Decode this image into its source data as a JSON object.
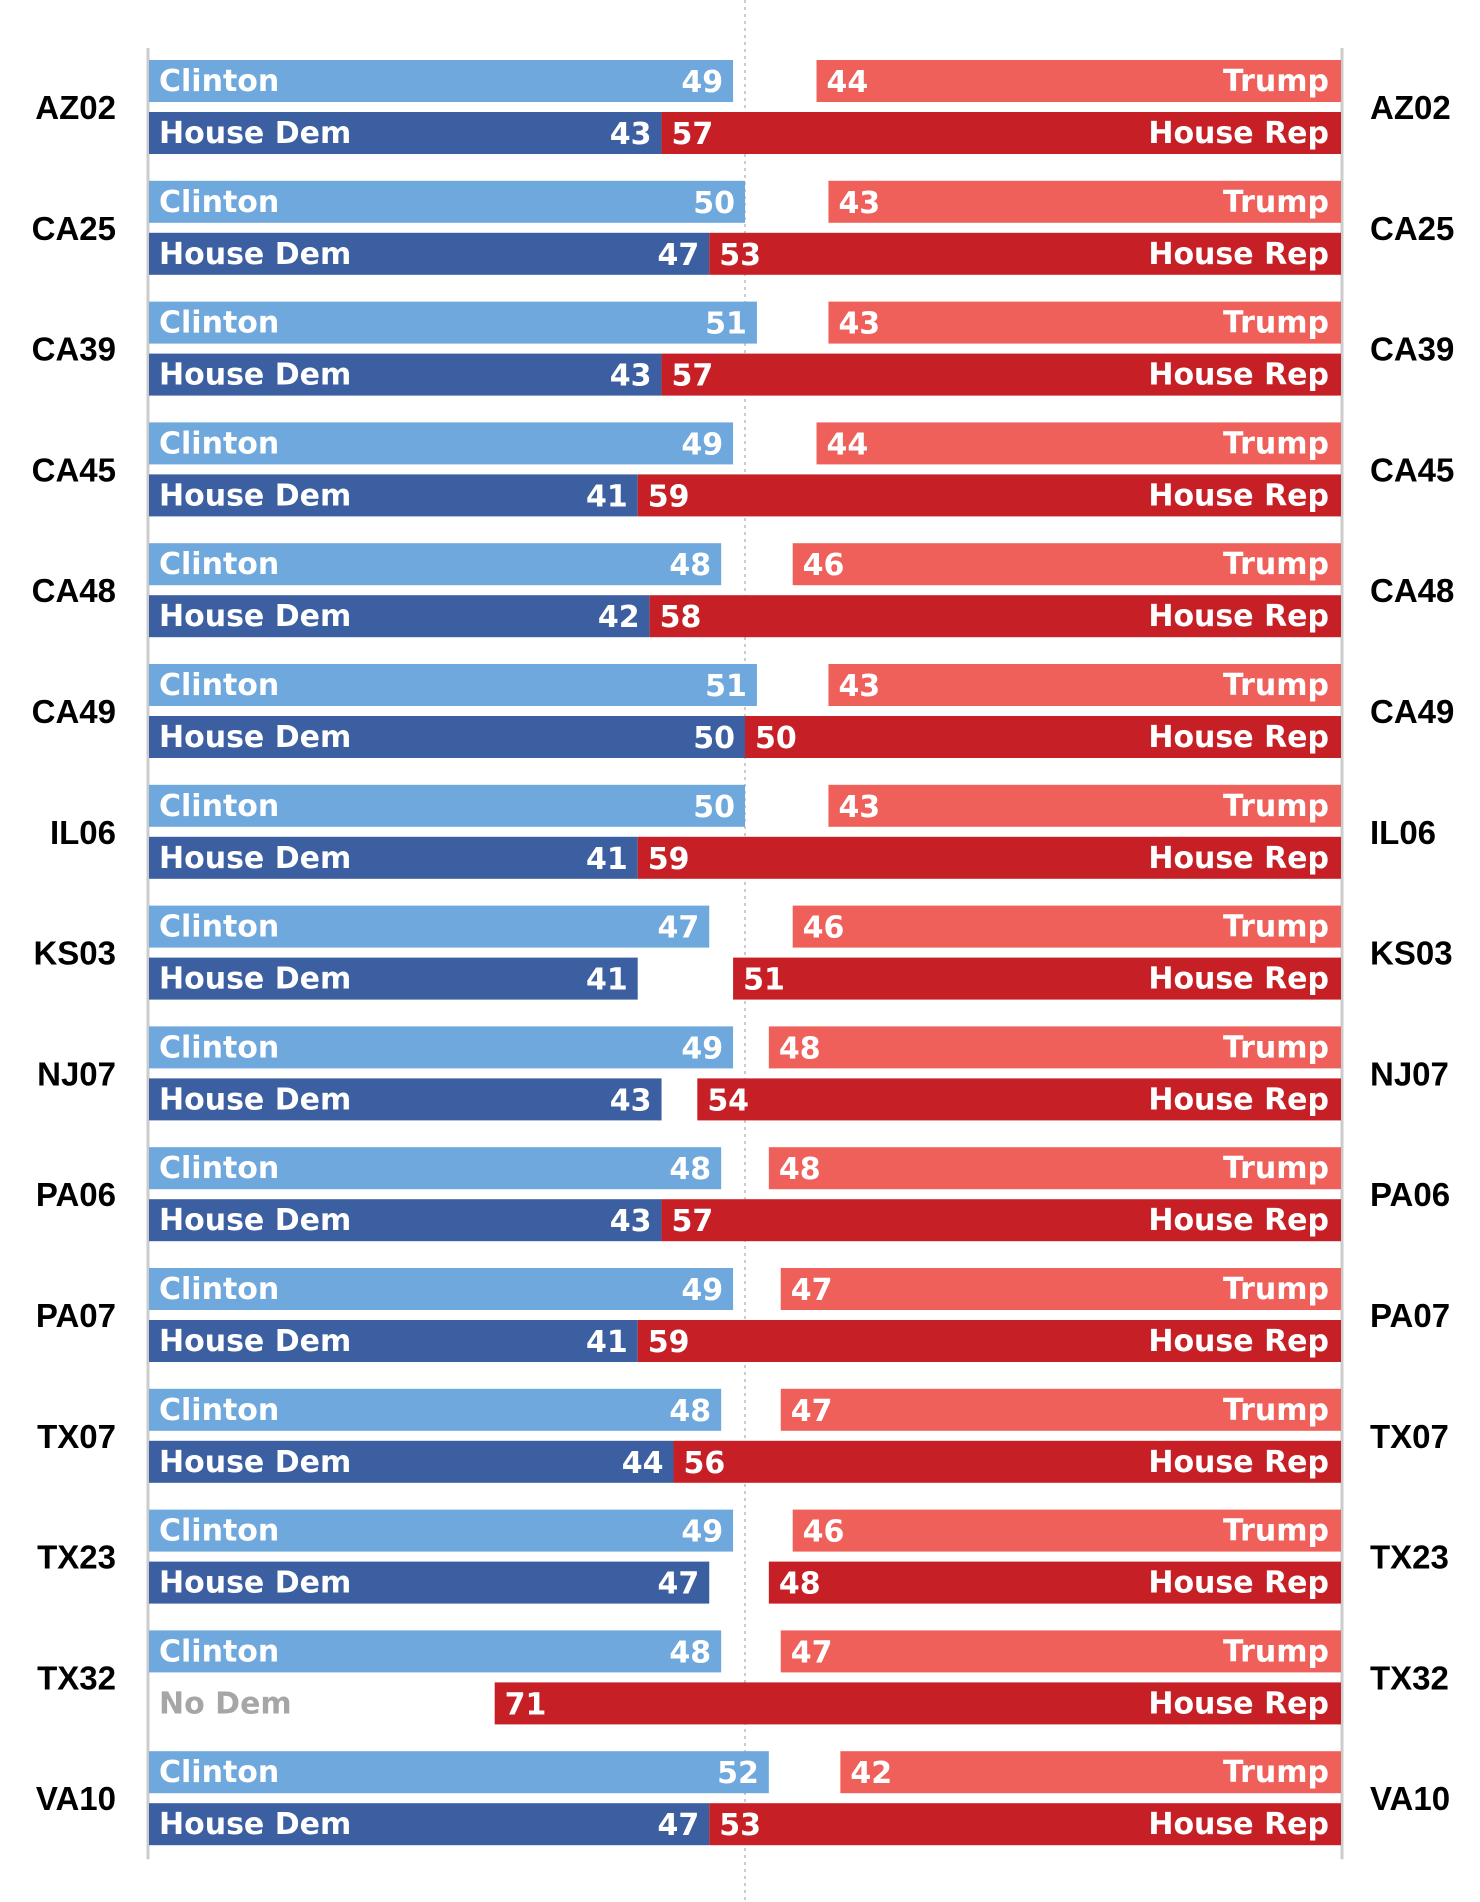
{
  "chart_data": {
    "type": "bar",
    "colors": {
      "clinton": "#6fa8dc",
      "house_dem": "#3c5fa1",
      "trump": "#f0605a",
      "house_rep": "#c62026",
      "axis": "#cccccc",
      "center_line": "#cccccc",
      "no_dem_text": "#a6a6a6"
    },
    "labels": {
      "clinton": "Clinton",
      "trump": "Trump",
      "house_dem": "House Dem",
      "house_rep": "House Rep",
      "no_dem": "No Dem"
    },
    "scale_max": 100,
    "districts": [
      {
        "name": "AZ02",
        "clinton": 49,
        "trump": 44,
        "house_dem": 43,
        "house_rep": 57
      },
      {
        "name": "CA25",
        "clinton": 50,
        "trump": 43,
        "house_dem": 47,
        "house_rep": 53
      },
      {
        "name": "CA39",
        "clinton": 51,
        "trump": 43,
        "house_dem": 43,
        "house_rep": 57
      },
      {
        "name": "CA45",
        "clinton": 49,
        "trump": 44,
        "house_dem": 41,
        "house_rep": 59
      },
      {
        "name": "CA48",
        "clinton": 48,
        "trump": 46,
        "house_dem": 42,
        "house_rep": 58
      },
      {
        "name": "CA49",
        "clinton": 51,
        "trump": 43,
        "house_dem": 50,
        "house_rep": 50
      },
      {
        "name": "IL06",
        "clinton": 50,
        "trump": 43,
        "house_dem": 41,
        "house_rep": 59
      },
      {
        "name": "KS03",
        "clinton": 47,
        "trump": 46,
        "house_dem": 41,
        "house_rep": 51
      },
      {
        "name": "NJ07",
        "clinton": 49,
        "trump": 48,
        "house_dem": 43,
        "house_rep": 54
      },
      {
        "name": "PA06",
        "clinton": 48,
        "trump": 48,
        "house_dem": 43,
        "house_rep": 57
      },
      {
        "name": "PA07",
        "clinton": 49,
        "trump": 47,
        "house_dem": 41,
        "house_rep": 59
      },
      {
        "name": "TX07",
        "clinton": 48,
        "trump": 47,
        "house_dem": 44,
        "house_rep": 56
      },
      {
        "name": "TX23",
        "clinton": 49,
        "trump": 46,
        "house_dem": 47,
        "house_rep": 48
      },
      {
        "name": "TX32",
        "clinton": 48,
        "trump": 47,
        "house_dem": null,
        "house_rep": 71
      },
      {
        "name": "VA10",
        "clinton": 52,
        "trump": 42,
        "house_dem": 47,
        "house_rep": 53
      }
    ]
  }
}
